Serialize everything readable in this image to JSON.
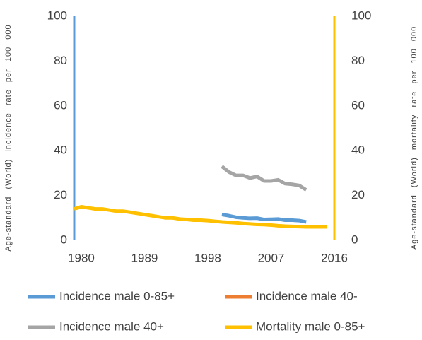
{
  "chart_data": {
    "type": "line",
    "y_label": "Age-standard (World) incidence rate per 100 000",
    "y2_label": "Age-standard (World) mortality rate per 100 000",
    "xlim": [
      1979,
      2016
    ],
    "xticks": [
      1980,
      1989,
      1998,
      2007,
      2016
    ],
    "ylim": [
      0,
      100
    ],
    "yticks": [
      0,
      20,
      40,
      60,
      80,
      100
    ],
    "y2lim": [
      0,
      100
    ],
    "y2ticks": [
      0,
      20,
      40,
      60,
      80,
      100
    ],
    "series": [
      {
        "name": "Incidence male 0-85+",
        "color": "#5b9bd5",
        "x": [
          2000,
          2001,
          2002,
          2003,
          2004,
          2005,
          2006,
          2007,
          2008,
          2009,
          2010,
          2011,
          2012
        ],
        "values": [
          11.5,
          11,
          10.3,
          10,
          9.8,
          9.9,
          9.3,
          9.4,
          9.5,
          9,
          9,
          8.8,
          8.2
        ]
      },
      {
        "name": "Incidence male 40-",
        "color": "#ed7d31",
        "x": [],
        "values": []
      },
      {
        "name": "Incidence male 40+",
        "color": "#a5a5a5",
        "x": [
          2000,
          2001,
          2002,
          2003,
          2004,
          2005,
          2006,
          2007,
          2008,
          2009,
          2010,
          2011,
          2012
        ],
        "values": [
          33,
          30.5,
          29,
          29,
          27.8,
          28.5,
          26.5,
          26.5,
          27,
          25.3,
          25,
          24.5,
          22.5
        ]
      },
      {
        "name": "Mortality male 0-85+",
        "color": "#ffc000",
        "axis": "y2",
        "x": [
          1979,
          1980,
          1981,
          1982,
          1983,
          1984,
          1985,
          1986,
          1987,
          1988,
          1989,
          1990,
          1991,
          1992,
          1993,
          1994,
          1995,
          1996,
          1997,
          1998,
          1999,
          2000,
          2001,
          2002,
          2003,
          2004,
          2005,
          2006,
          2007,
          2008,
          2009,
          2010,
          2011,
          2012,
          2013,
          2014,
          2015
        ],
        "values": [
          14,
          15,
          14.5,
          14,
          14,
          13.5,
          13,
          13,
          12.5,
          12,
          11.5,
          11,
          10.5,
          10,
          10,
          9.5,
          9.3,
          9,
          9,
          8.8,
          8.5,
          8.2,
          8,
          7.8,
          7.5,
          7.3,
          7.1,
          7,
          6.8,
          6.5,
          6.3,
          6.2,
          6.1,
          6,
          6,
          6,
          6
        ]
      }
    ]
  }
}
